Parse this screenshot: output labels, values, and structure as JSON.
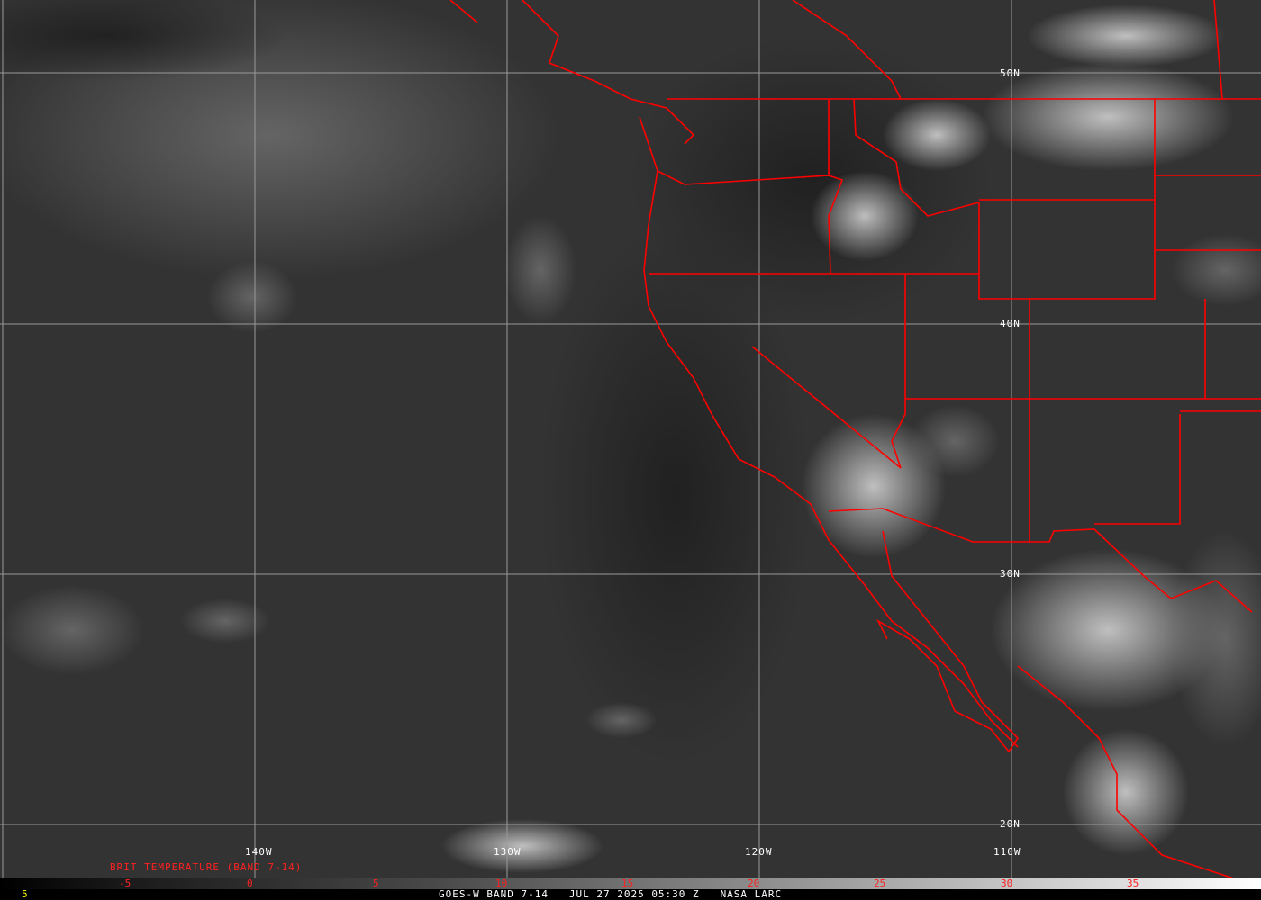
{
  "colors": {
    "boundary": "#ff0000",
    "grid": "#9a9a9a",
    "colorbar_labels": "#ff2020",
    "footer": "#ffffff",
    "corner_value": "#ffff00"
  },
  "longitude_labels": [
    "140W",
    "130W",
    "120W",
    "110W"
  ],
  "latitude_labels": [
    "50N",
    "40N",
    "30N",
    "20N"
  ],
  "colorbar": {
    "title": "BRIT TEMPERATURE (BAND 7-14)",
    "ticks": [
      "-5",
      "0",
      "5",
      "10",
      "15",
      "20",
      "25",
      "30",
      "35"
    ]
  },
  "corner_value": "5",
  "footer": {
    "satellite": "GOES-W BAND 7-14",
    "datetime": "JUL 27 2025 05:30 Z",
    "source": "NASA LARC"
  }
}
